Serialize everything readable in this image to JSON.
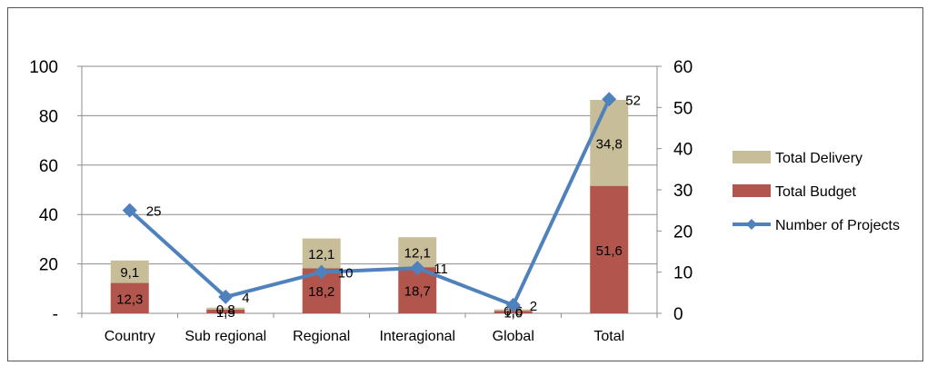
{
  "chart_data": {
    "type": "bar",
    "stacked": true,
    "categories": [
      "Country",
      "Sub regional",
      "Regional",
      "Interagional",
      "Global",
      "Total"
    ],
    "series": [
      {
        "name": "Total Budget",
        "type": "bar",
        "axis": "left",
        "color": "#b1554d",
        "values": [
          12.3,
          1.5,
          18.2,
          18.7,
          1.0,
          51.6
        ],
        "labels": [
          "12,3",
          "1,5",
          "18,2",
          "18,7",
          "1,0",
          "51,6"
        ]
      },
      {
        "name": "Total Delivery",
        "type": "bar",
        "axis": "left",
        "color": "#c7bd98",
        "values": [
          9.1,
          0.8,
          12.1,
          12.1,
          0.6,
          34.8
        ],
        "labels": [
          "9,1",
          "0,8",
          "12,1",
          "12,1",
          "0,6",
          "34,8"
        ]
      },
      {
        "name": "Number of Projects",
        "type": "line",
        "axis": "right",
        "color": "#4f81bd",
        "marker": "diamond",
        "values": [
          25,
          4,
          10,
          11,
          2,
          52
        ],
        "labels": [
          "25",
          "4",
          "10",
          "11",
          "2",
          "52"
        ]
      }
    ],
    "y_left": {
      "ylim": [
        0,
        100
      ],
      "ticks": [
        "-",
        "20",
        "40",
        "60",
        "80",
        "100"
      ]
    },
    "y_right": {
      "ylim": [
        0,
        60
      ],
      "ticks": [
        "0",
        "10",
        "20",
        "30",
        "40",
        "50",
        "60"
      ]
    },
    "grid": true,
    "legend_position": "right",
    "legend_order": [
      "Total Delivery",
      "Total Budget",
      "Number of Projects"
    ]
  }
}
